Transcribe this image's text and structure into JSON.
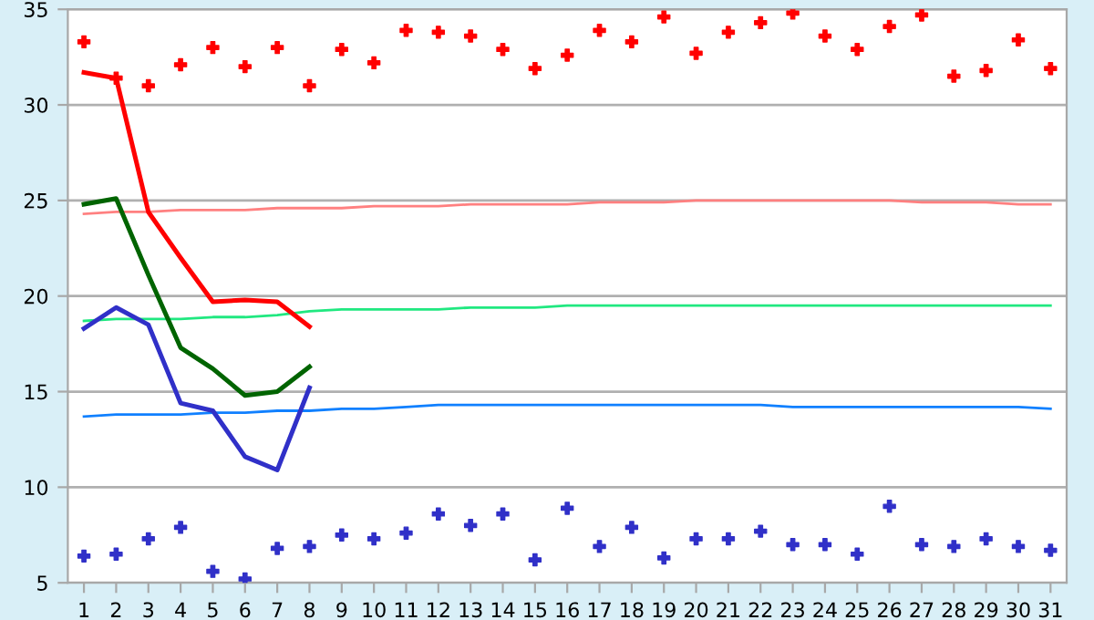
{
  "chart_data": {
    "type": "line",
    "categories": [
      "1",
      "2",
      "3",
      "4",
      "5",
      "6",
      "7",
      "8",
      "9",
      "10",
      "11",
      "12",
      "13",
      "14",
      "15",
      "16",
      "17",
      "18",
      "19",
      "20",
      "21",
      "22",
      "23",
      "24",
      "25",
      "26",
      "27",
      "28",
      "29",
      "30",
      "31"
    ],
    "ylim": [
      5,
      35
    ],
    "yticks": [
      5,
      10,
      15,
      20,
      25,
      30,
      35
    ],
    "grid": "y",
    "legend": false,
    "series": [
      {
        "color": "#ff8080",
        "values": [
          24.3,
          24.4,
          24.4,
          24.5,
          24.5,
          24.5,
          24.6,
          24.6,
          24.6,
          24.7,
          24.7,
          24.7,
          24.8,
          24.8,
          24.8,
          24.8,
          24.9,
          24.9,
          24.9,
          25.0,
          25.0,
          25.0,
          25.0,
          25.0,
          25.0,
          25.0,
          24.9,
          24.9,
          24.9,
          24.8,
          24.8
        ]
      },
      {
        "color": "#20e880",
        "values": [
          18.7,
          18.8,
          18.8,
          18.8,
          18.9,
          18.9,
          19.0,
          19.2,
          19.3,
          19.3,
          19.3,
          19.3,
          19.4,
          19.4,
          19.4,
          19.5,
          19.5,
          19.5,
          19.5,
          19.5,
          19.5,
          19.5,
          19.5,
          19.5,
          19.5,
          19.5,
          19.5,
          19.5,
          19.5,
          19.5,
          19.5
        ]
      },
      {
        "color": "#1080ff",
        "values": [
          13.7,
          13.8,
          13.8,
          13.8,
          13.9,
          13.9,
          14.0,
          14.0,
          14.1,
          14.1,
          14.2,
          14.3,
          14.3,
          14.3,
          14.3,
          14.3,
          14.3,
          14.3,
          14.3,
          14.3,
          14.3,
          14.3,
          14.2,
          14.2,
          14.2,
          14.2,
          14.2,
          14.2,
          14.2,
          14.2,
          14.1
        ]
      },
      {
        "color": "#ff0000",
        "values": [
          31.7,
          31.4,
          24.4,
          22.0,
          19.7,
          19.8,
          19.7,
          18.4,
          null,
          null,
          null,
          null,
          null,
          null,
          null,
          null,
          null,
          null,
          null,
          null,
          null,
          null,
          null,
          null,
          null,
          null,
          null,
          null,
          null,
          null,
          null
        ]
      },
      {
        "color": "#006400",
        "values": [
          24.8,
          25.1,
          21.1,
          17.3,
          16.2,
          14.8,
          15.0,
          16.3,
          null,
          null,
          null,
          null,
          null,
          null,
          null,
          null,
          null,
          null,
          null,
          null,
          null,
          null,
          null,
          null,
          null,
          null,
          null,
          null,
          null,
          null,
          null
        ]
      },
      {
        "color": "#3030c8",
        "values": [
          18.3,
          19.4,
          18.5,
          14.4,
          14.0,
          11.6,
          10.9,
          15.2,
          null,
          null,
          null,
          null,
          null,
          null,
          null,
          null,
          null,
          null,
          null,
          null,
          null,
          null,
          null,
          null,
          null,
          null,
          null,
          null,
          null,
          null,
          null
        ]
      },
      {
        "type": "scatter",
        "color": "#ff0000",
        "marker": "cross",
        "values": [
          33.3,
          31.4,
          31.0,
          32.1,
          33.0,
          32.0,
          33.0,
          31.0,
          32.9,
          32.2,
          33.9,
          33.8,
          33.6,
          32.9,
          31.9,
          32.6,
          33.9,
          33.3,
          34.6,
          32.7,
          33.8,
          34.3,
          34.8,
          33.6,
          32.9,
          34.1,
          34.7,
          31.5,
          31.8,
          33.4,
          31.9
        ]
      },
      {
        "type": "scatter",
        "color": "#3030c8",
        "marker": "cross",
        "values": [
          6.4,
          6.5,
          7.3,
          7.9,
          5.6,
          5.2,
          6.8,
          6.9,
          7.5,
          7.3,
          7.6,
          8.6,
          8.0,
          8.6,
          6.2,
          8.9,
          6.9,
          7.9,
          6.3,
          7.3,
          7.3,
          7.7,
          7.0,
          7.0,
          6.5,
          9.0,
          7.0,
          6.9,
          7.3,
          6.9,
          6.7
        ]
      }
    ]
  }
}
